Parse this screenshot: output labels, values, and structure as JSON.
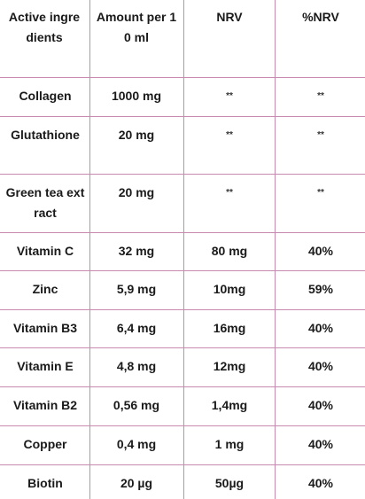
{
  "header": {
    "col1": "Active ingredients",
    "col2": "Amount per 10 ml",
    "col3": "NRV",
    "col4": "%NRV"
  },
  "rows": [
    {
      "ingredient": "Collagen",
      "amount": "1000 mg",
      "nrv": "**",
      "pnrv": "**"
    },
    {
      "ingredient": "Glutathione",
      "amount": "20 mg",
      "nrv": "**",
      "pnrv": "**"
    },
    {
      "ingredient": "Green tea extract",
      "amount": "20 mg",
      "nrv": "**",
      "pnrv": "**"
    },
    {
      "ingredient": "Vitamin C",
      "amount": "32 mg",
      "nrv": "80 mg",
      "pnrv": "40%"
    },
    {
      "ingredient": "Zinc",
      "amount": "5,9 mg",
      "nrv": "10mg",
      "pnrv": "59%"
    },
    {
      "ingredient": "Vitamin B3",
      "amount": "6,4 mg",
      "nrv": "16mg",
      "pnrv": "40%"
    },
    {
      "ingredient": "Vitamin E",
      "amount": "4,8 mg",
      "nrv": "12mg",
      "pnrv": "40%"
    },
    {
      "ingredient": "Vitamin B2",
      "amount": "0,56 mg",
      "nrv": "1,4mg",
      "pnrv": "40%"
    },
    {
      "ingredient": "Copper",
      "amount": "0,4 mg",
      "nrv": "1 mg",
      "pnrv": "40%"
    },
    {
      "ingredient": "Biotin",
      "amount": "20 µg",
      "nrv": "50µg",
      "pnrv": "40%"
    }
  ],
  "colors": {
    "border": "#c98ab0",
    "text": "#1a1a1a"
  }
}
